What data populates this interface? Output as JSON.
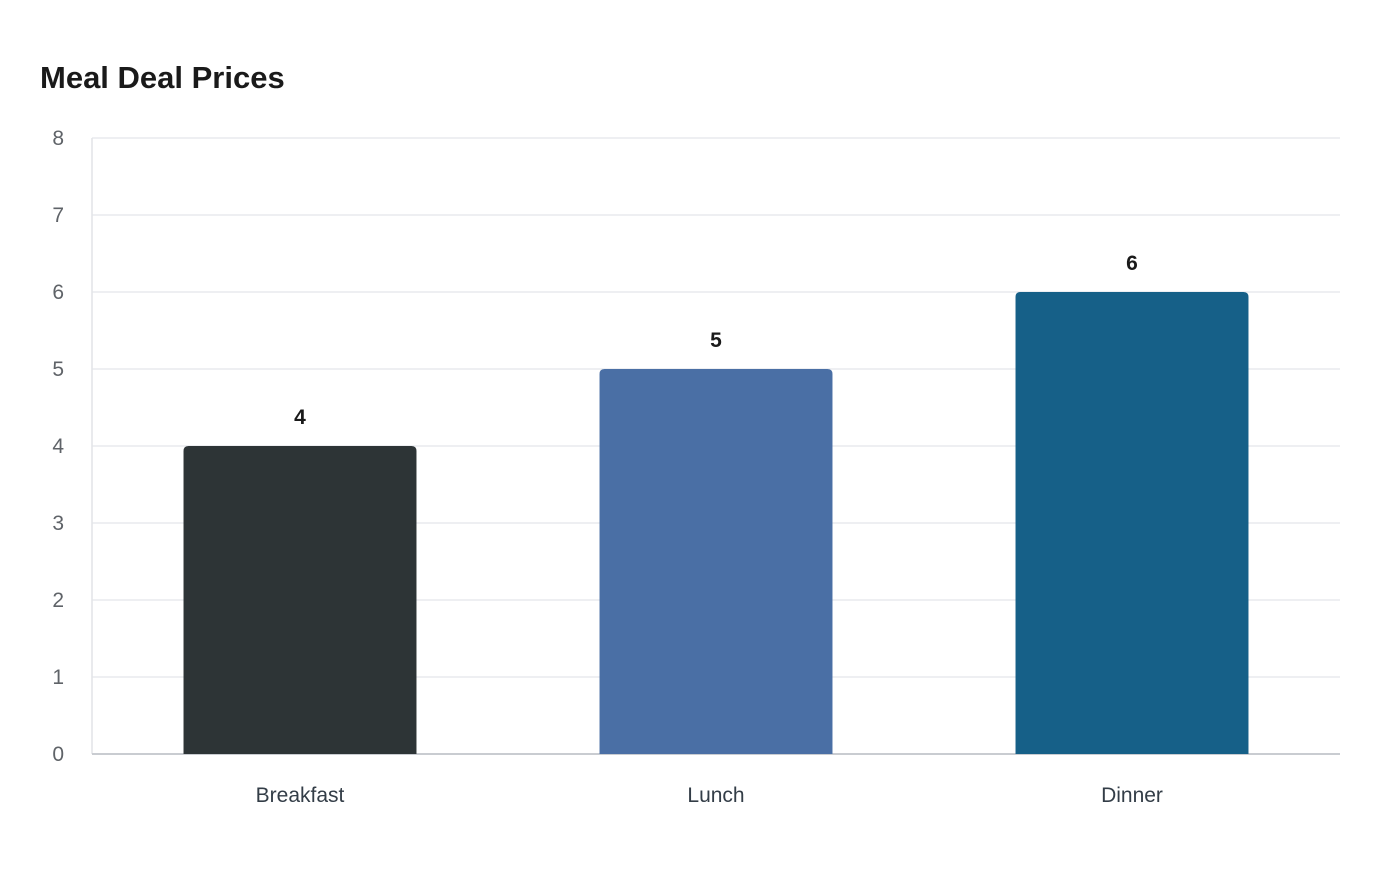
{
  "chart_data": {
    "type": "bar",
    "title": "Meal Deal Prices",
    "xlabel": "",
    "ylabel": "",
    "categories": [
      "Breakfast",
      "Lunch",
      "Dinner"
    ],
    "values": [
      4,
      5,
      6
    ],
    "data_labels": [
      "4",
      "5",
      "6"
    ],
    "colors": [
      "#2d3436",
      "#4a6fa5",
      "#166088"
    ],
    "ylim": [
      0,
      8
    ],
    "yticks": [
      "0",
      "1",
      "2",
      "3",
      "4",
      "5",
      "6",
      "7",
      "8"
    ],
    "grid": true,
    "legend": "none"
  }
}
